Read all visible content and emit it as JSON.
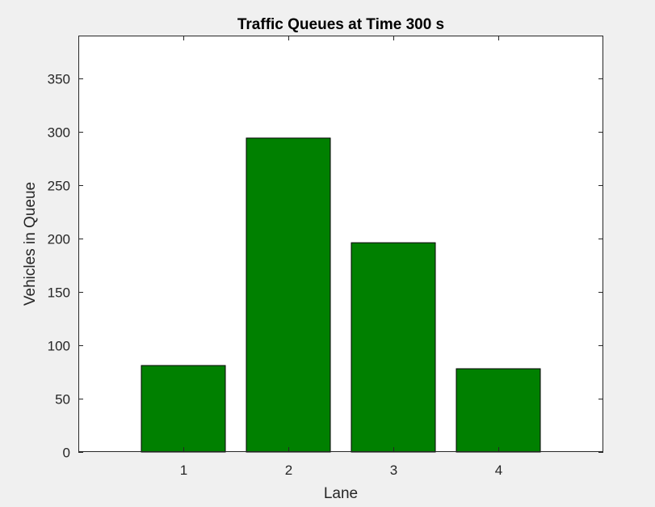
{
  "chart_data": {
    "type": "bar",
    "title": "Traffic Queues at Time 300 s",
    "xlabel": "Lane",
    "ylabel": "Vehicles in Queue",
    "categories": [
      "1",
      "2",
      "3",
      "4"
    ],
    "values": [
      81,
      294,
      196,
      78
    ],
    "xlim": [
      0,
      5
    ],
    "ylim": [
      0,
      390
    ],
    "yticks": [
      0,
      50,
      100,
      150,
      200,
      250,
      300,
      350
    ],
    "grid": false,
    "legend": "none",
    "bar_color": "#008000",
    "bar_edge_color": "#000000"
  },
  "colors": {
    "figure_background": "#f0f0f0",
    "axes_background": "#ffffff",
    "axes_color": "#262626"
  }
}
